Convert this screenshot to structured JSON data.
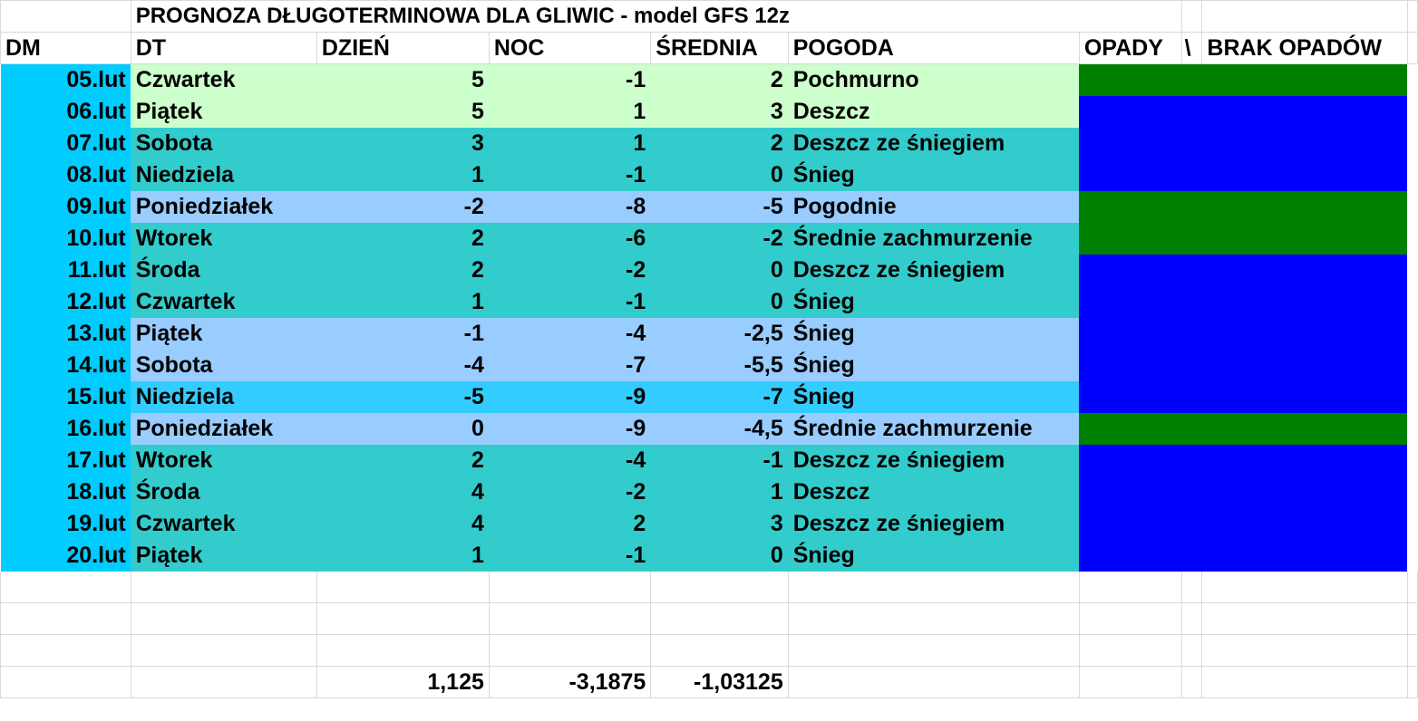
{
  "title": "PROGNOZA DŁUGOTERMINOWA DLA GLIWIC - model GFS 12z",
  "headers": {
    "dm": "DM",
    "dt": "DT",
    "dzien": "DZIEŃ",
    "noc": "NOC",
    "srednia": "ŚREDNIA",
    "pogoda": "POGODA",
    "opady": "OPADY",
    "slash": "\\",
    "brak": "BRAK OPADÓW"
  },
  "colors": {
    "dm_column": "#00ccff",
    "light_green": "#ccffcc",
    "teal": "#33cccc",
    "light_blue": "#99ccff",
    "sky": "#33ccff",
    "precip": "#0000ff",
    "no_precip": "#008000"
  },
  "rows": [
    {
      "dm": "05.lut",
      "dt": "Czwartek",
      "dzien": "5",
      "noc": "-1",
      "srednia": "2",
      "pogoda": "Pochmurno",
      "row_color": "#ccffcc",
      "precip": "no_precip"
    },
    {
      "dm": "06.lut",
      "dt": "Piątek",
      "dzien": "5",
      "noc": "1",
      "srednia": "3",
      "pogoda": "Deszcz",
      "row_color": "#ccffcc",
      "precip": "precip"
    },
    {
      "dm": "07.lut",
      "dt": "Sobota",
      "dzien": "3",
      "noc": "1",
      "srednia": "2",
      "pogoda": "Deszcz ze śniegiem",
      "row_color": "#33cccc",
      "precip": "precip"
    },
    {
      "dm": "08.lut",
      "dt": "Niedziela",
      "dzien": "1",
      "noc": "-1",
      "srednia": "0",
      "pogoda": "Śnieg",
      "row_color": "#33cccc",
      "precip": "precip"
    },
    {
      "dm": "09.lut",
      "dt": "Poniedziałek",
      "dzien": "-2",
      "noc": "-8",
      "srednia": "-5",
      "pogoda": "Pogodnie",
      "row_color": "#99ccff",
      "precip": "no_precip"
    },
    {
      "dm": "10.lut",
      "dt": "Wtorek",
      "dzien": "2",
      "noc": "-6",
      "srednia": "-2",
      "pogoda": "Średnie zachmurzenie",
      "row_color": "#33cccc",
      "precip": "no_precip"
    },
    {
      "dm": "11.lut",
      "dt": "Środa",
      "dzien": "2",
      "noc": "-2",
      "srednia": "0",
      "pogoda": "Deszcz ze śniegiem",
      "row_color": "#33cccc",
      "precip": "precip"
    },
    {
      "dm": "12.lut",
      "dt": "Czwartek",
      "dzien": "1",
      "noc": "-1",
      "srednia": "0",
      "pogoda": "Śnieg",
      "row_color": "#33cccc",
      "precip": "precip"
    },
    {
      "dm": "13.lut",
      "dt": "Piątek",
      "dzien": "-1",
      "noc": "-4",
      "srednia": "-2,5",
      "pogoda": "Śnieg",
      "row_color": "#99ccff",
      "precip": "precip"
    },
    {
      "dm": "14.lut",
      "dt": "Sobota",
      "dzien": "-4",
      "noc": "-7",
      "srednia": "-5,5",
      "pogoda": "Śnieg",
      "row_color": "#99ccff",
      "precip": "precip"
    },
    {
      "dm": "15.lut",
      "dt": "Niedziela",
      "dzien": "-5",
      "noc": "-9",
      "srednia": "-7",
      "pogoda": "Śnieg",
      "row_color": "#33ccff",
      "precip": "precip"
    },
    {
      "dm": "16.lut",
      "dt": "Poniedziałek",
      "dzien": "0",
      "noc": "-9",
      "srednia": "-4,5",
      "pogoda": "Średnie zachmurzenie",
      "row_color": "#99ccff",
      "precip": "no_precip"
    },
    {
      "dm": "17.lut",
      "dt": "Wtorek",
      "dzien": "2",
      "noc": "-4",
      "srednia": "-1",
      "pogoda": "Deszcz ze śniegiem",
      "row_color": "#33cccc",
      "precip": "precip"
    },
    {
      "dm": "18.lut",
      "dt": "Środa",
      "dzien": "4",
      "noc": "-2",
      "srednia": "1",
      "pogoda": "Deszcz",
      "row_color": "#33cccc",
      "precip": "precip"
    },
    {
      "dm": "19.lut",
      "dt": "Czwartek",
      "dzien": "4",
      "noc": "2",
      "srednia": "3",
      "pogoda": "Deszcz ze śniegiem",
      "row_color": "#33cccc",
      "precip": "precip"
    },
    {
      "dm": "20.lut",
      "dt": "Piątek",
      "dzien": "1",
      "noc": "-1",
      "srednia": "0",
      "pogoda": "Śnieg",
      "row_color": "#33cccc",
      "precip": "precip"
    }
  ],
  "totals": {
    "dzien": "1,125",
    "noc": "-3,1875",
    "srednia": "-1,03125"
  }
}
